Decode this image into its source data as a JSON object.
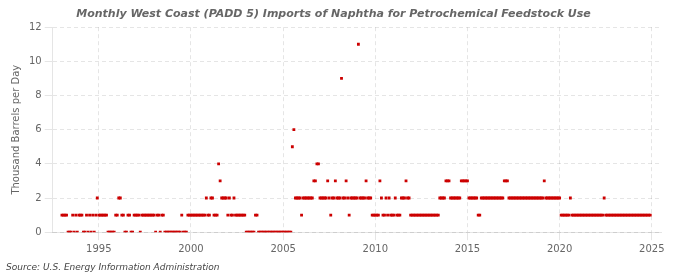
{
  "chart_data": {
    "type": "scatter",
    "title": "Monthly West Coast (PADD 5) Imports of Naphtha for Petrochemical Feedstock Use",
    "ylabel": "Thousand Barrels per Day",
    "annotations": [
      "Source: U.S. Energy Information Administration"
    ],
    "color": "#cc0000",
    "marker": "square",
    "grid": true,
    "xlim": [
      1992.5,
      2025.5
    ],
    "xticks": [
      1995,
      2000,
      2005,
      2010,
      2015,
      2020,
      2025
    ],
    "ylim": [
      0,
      12
    ],
    "yticks": [
      0,
      2,
      4,
      6,
      8,
      10,
      12
    ],
    "x": [
      1993.0,
      1993.083,
      1993.167,
      1993.25,
      1993.333,
      1993.417,
      1993.5,
      1993.583,
      1993.667,
      1993.75,
      1993.833,
      1993.917,
      1994.0,
      1994.083,
      1994.167,
      1994.25,
      1994.333,
      1994.417,
      1994.5,
      1994.583,
      1994.667,
      1994.75,
      1994.833,
      1994.917,
      1995.0,
      1995.083,
      1995.167,
      1995.25,
      1995.333,
      1995.417,
      1995.5,
      1995.583,
      1995.667,
      1995.75,
      1995.833,
      1995.917,
      1996.0,
      1996.083,
      1996.167,
      1996.25,
      1996.333,
      1996.417,
      1996.5,
      1996.583,
      1996.667,
      1996.75,
      1996.833,
      1996.917,
      1997.0,
      1997.083,
      1997.167,
      1997.25,
      1997.333,
      1997.417,
      1997.5,
      1997.583,
      1997.667,
      1997.75,
      1997.833,
      1997.917,
      1998.0,
      1998.083,
      1998.167,
      1998.25,
      1998.333,
      1998.417,
      1998.5,
      1998.583,
      1998.667,
      1998.75,
      1998.833,
      1998.917,
      1999.0,
      1999.083,
      1999.167,
      1999.25,
      1999.333,
      1999.417,
      1999.5,
      1999.583,
      1999.667,
      1999.75,
      1999.833,
      1999.917,
      2000.0,
      2000.083,
      2000.167,
      2000.25,
      2000.333,
      2000.417,
      2000.5,
      2000.583,
      2000.667,
      2000.75,
      2000.833,
      2000.917,
      2001.0,
      2001.083,
      2001.167,
      2001.25,
      2001.333,
      2001.417,
      2001.5,
      2001.583,
      2001.667,
      2001.75,
      2001.833,
      2001.917,
      2002.0,
      2002.083,
      2002.167,
      2002.25,
      2002.333,
      2002.417,
      2002.5,
      2002.583,
      2002.667,
      2002.75,
      2002.833,
      2002.917,
      2003.0,
      2003.083,
      2003.167,
      2003.25,
      2003.333,
      2003.417,
      2003.5,
      2003.583,
      2003.667,
      2003.75,
      2003.833,
      2003.917,
      2004.0,
      2004.083,
      2004.167,
      2004.25,
      2004.333,
      2004.417,
      2004.5,
      2004.583,
      2004.667,
      2004.75,
      2004.833,
      2004.917,
      2005.0,
      2005.083,
      2005.167,
      2005.25,
      2005.333,
      2005.417,
      2005.5,
      2005.583,
      2005.667,
      2005.75,
      2005.833,
      2005.917,
      2006.0,
      2006.083,
      2006.167,
      2006.25,
      2006.333,
      2006.417,
      2006.5,
      2006.583,
      2006.667,
      2006.75,
      2006.833,
      2006.917,
      2007.0,
      2007.083,
      2007.167,
      2007.25,
      2007.333,
      2007.417,
      2007.5,
      2007.583,
      2007.667,
      2007.75,
      2007.833,
      2007.917,
      2008.0,
      2008.083,
      2008.167,
      2008.25,
      2008.333,
      2008.417,
      2008.5,
      2008.583,
      2008.667,
      2008.75,
      2008.833,
      2008.917,
      2009.0,
      2009.083,
      2009.167,
      2009.25,
      2009.333,
      2009.417,
      2009.5,
      2009.583,
      2009.667,
      2009.75,
      2009.833,
      2009.917,
      2010.0,
      2010.083,
      2010.167,
      2010.25,
      2010.333,
      2010.417,
      2010.5,
      2010.583,
      2010.667,
      2010.75,
      2010.833,
      2010.917,
      2011.0,
      2011.083,
      2011.167,
      2011.25,
      2011.333,
      2011.417,
      2011.5,
      2011.583,
      2011.667,
      2011.75,
      2011.833,
      2011.917,
      2012.0,
      2012.083,
      2012.167,
      2012.25,
      2012.333,
      2012.417,
      2012.5,
      2012.583,
      2012.667,
      2012.75,
      2012.833,
      2012.917,
      2013.0,
      2013.083,
      2013.167,
      2013.25,
      2013.333,
      2013.417,
      2013.5,
      2013.583,
      2013.667,
      2013.75,
      2013.833,
      2013.917,
      2014.0,
      2014.083,
      2014.167,
      2014.25,
      2014.333,
      2014.417,
      2014.5,
      2014.583,
      2014.667,
      2014.75,
      2014.833,
      2014.917,
      2015.0,
      2015.083,
      2015.167,
      2015.25,
      2015.333,
      2015.417,
      2015.5,
      2015.583,
      2015.667,
      2015.75,
      2015.833,
      2015.917,
      2016.0,
      2016.083,
      2016.167,
      2016.25,
      2016.333,
      2016.417,
      2016.5,
      2016.583,
      2016.667,
      2016.75,
      2016.833,
      2016.917,
      2017.0,
      2017.083,
      2017.167,
      2017.25,
      2017.333,
      2017.417,
      2017.5,
      2017.583,
      2017.667,
      2017.75,
      2017.833,
      2017.917,
      2018.0,
      2018.083,
      2018.167,
      2018.25,
      2018.333,
      2018.417,
      2018.5,
      2018.583,
      2018.667,
      2018.75,
      2018.833,
      2018.917,
      2019.0,
      2019.083,
      2019.167,
      2019.25,
      2019.333,
      2019.417,
      2019.5,
      2019.583,
      2019.667,
      2019.75,
      2019.833,
      2019.917,
      2020.0,
      2020.083,
      2020.167,
      2020.25,
      2020.333,
      2020.417,
      2020.5,
      2020.583,
      2020.667,
      2020.75,
      2020.833,
      2020.917,
      2021.0,
      2021.083,
      2021.167,
      2021.25,
      2021.333,
      2021.417,
      2021.5,
      2021.583,
      2021.667,
      2021.75,
      2021.833,
      2021.917,
      2022.0,
      2022.083,
      2022.167,
      2022.25,
      2022.333,
      2022.417,
      2022.5,
      2022.583,
      2022.667,
      2022.75,
      2022.833,
      2022.917,
      2023.0,
      2023.083,
      2023.167,
      2023.25,
      2023.333,
      2023.417,
      2023.5,
      2023.583,
      2023.667,
      2023.75,
      2023.833,
      2023.917,
      2024.0,
      2024.083,
      2024.167,
      2024.25,
      2024.333,
      2024.417,
      2024.5,
      2024.583,
      2024.667,
      2024.75,
      2024.833,
      2024.917
    ],
    "values": [
      1,
      1,
      1,
      1,
      0,
      0,
      0,
      1,
      0,
      1,
      0,
      1,
      1,
      1,
      0,
      0,
      1,
      0,
      1,
      0,
      1,
      0,
      1,
      2,
      1,
      1,
      1,
      1,
      1,
      1,
      0,
      0,
      0,
      0,
      0,
      1,
      1,
      2,
      2,
      1,
      1,
      0,
      0,
      1,
      1,
      0,
      0,
      1,
      1,
      1,
      1,
      0,
      1,
      1,
      1,
      1,
      1,
      1,
      1,
      1,
      1,
      0,
      1,
      1,
      0,
      1,
      1,
      0,
      0,
      0,
      0,
      0,
      0,
      0,
      0,
      0,
      0,
      0,
      1,
      0,
      0,
      0,
      1,
      1,
      1,
      1,
      1,
      1,
      1,
      1,
      1,
      1,
      1,
      1,
      2,
      1,
      1,
      2,
      2,
      1,
      1,
      1,
      4,
      3,
      2,
      2,
      2,
      2,
      1,
      2,
      1,
      1,
      2,
      1,
      1,
      1,
      1,
      1,
      1,
      1,
      0,
      0,
      0,
      0,
      0,
      0,
      1,
      1,
      0,
      0,
      0,
      0,
      0,
      0,
      0,
      0,
      0,
      0,
      0,
      0,
      0,
      0,
      0,
      0,
      0,
      0,
      0,
      0,
      0,
      0,
      5,
      6,
      2,
      2,
      2,
      2,
      1,
      2,
      2,
      2,
      2,
      2,
      2,
      2,
      3,
      3,
      4,
      4,
      2,
      2,
      2,
      2,
      2,
      3,
      2,
      1,
      2,
      2,
      3,
      2,
      2,
      2,
      9,
      2,
      2,
      3,
      2,
      1,
      2,
      2,
      2,
      2,
      2,
      11,
      2,
      2,
      2,
      2,
      3,
      2,
      2,
      2,
      1,
      1,
      1,
      1,
      1,
      3,
      2,
      1,
      1,
      2,
      1,
      2,
      1,
      1,
      1,
      2,
      1,
      1,
      1,
      2,
      2,
      2,
      3,
      2,
      2,
      1,
      1,
      1,
      1,
      1,
      1,
      1,
      1,
      1,
      1,
      1,
      1,
      1,
      1,
      1,
      1,
      1,
      1,
      1,
      2,
      2,
      2,
      2,
      3,
      3,
      3,
      2,
      2,
      2,
      2,
      2,
      2,
      2,
      3,
      3,
      3,
      3,
      3,
      2,
      2,
      2,
      2,
      2,
      2,
      1,
      1,
      2,
      2,
      2,
      2,
      2,
      2,
      2,
      2,
      2,
      2,
      2,
      2,
      2,
      2,
      2,
      3,
      3,
      3,
      2,
      2,
      2,
      2,
      2,
      2,
      2,
      2,
      2,
      2,
      2,
      2,
      2,
      2,
      2,
      2,
      2,
      2,
      2,
      2,
      2,
      2,
      2,
      3,
      2,
      2,
      2,
      2,
      2,
      2,
      2,
      2,
      2,
      2,
      1,
      1,
      1,
      1,
      1,
      1,
      2,
      1,
      1,
      1,
      1,
      1,
      1,
      1,
      1,
      1,
      1,
      1,
      1,
      1,
      1,
      1,
      1,
      1,
      1,
      1,
      1,
      1,
      2,
      1,
      1,
      1,
      1,
      1,
      1,
      1,
      1,
      1,
      1,
      1,
      1,
      1,
      1,
      1,
      1,
      1,
      1,
      1,
      1,
      1,
      1,
      1,
      1,
      1,
      1,
      1,
      1,
      1,
      1
    ]
  }
}
